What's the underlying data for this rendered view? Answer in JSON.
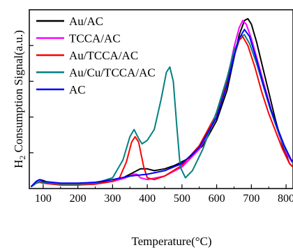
{
  "chart_data": {
    "type": "line",
    "title": "",
    "xlabel": "Temperature(°C)",
    "ylabel_main": "H",
    "ylabel_sub": "2",
    "ylabel_rest": " Consumption Signal(a.u.)",
    "xlim": [
      60,
      820
    ],
    "ylim": [
      0,
      100
    ],
    "x_ticks": [
      100,
      200,
      300,
      400,
      500,
      600,
      700,
      800
    ],
    "x_minor_ticks": [
      150,
      250,
      350,
      450,
      550,
      650,
      750
    ],
    "y_ticks": [
      20,
      40,
      60,
      80
    ],
    "grid": false,
    "legend_position": "top-left",
    "series": [
      {
        "name": "Au/AC",
        "color": "#000000",
        "points": [
          [
            65,
            1
          ],
          [
            80,
            4
          ],
          [
            90,
            5
          ],
          [
            100,
            4.5
          ],
          [
            120,
            3
          ],
          [
            150,
            2.5
          ],
          [
            200,
            2.5
          ],
          [
            250,
            3
          ],
          [
            300,
            4
          ],
          [
            330,
            6
          ],
          [
            360,
            9
          ],
          [
            380,
            11
          ],
          [
            400,
            11
          ],
          [
            420,
            10
          ],
          [
            450,
            11
          ],
          [
            480,
            13
          ],
          [
            520,
            17
          ],
          [
            560,
            24
          ],
          [
            600,
            38
          ],
          [
            630,
            55
          ],
          [
            650,
            73
          ],
          [
            665,
            86
          ],
          [
            680,
            94
          ],
          [
            690,
            95
          ],
          [
            700,
            92
          ],
          [
            715,
            82
          ],
          [
            730,
            70
          ],
          [
            750,
            54
          ],
          [
            770,
            38
          ],
          [
            790,
            24
          ],
          [
            810,
            14
          ],
          [
            820,
            12
          ]
        ]
      },
      {
        "name": "TCCA/AC",
        "color": "#ff00ff",
        "points": [
          [
            65,
            1
          ],
          [
            80,
            3
          ],
          [
            90,
            3.5
          ],
          [
            100,
            3
          ],
          [
            150,
            2
          ],
          [
            200,
            2
          ],
          [
            250,
            2.5
          ],
          [
            300,
            4
          ],
          [
            330,
            5.5
          ],
          [
            350,
            7
          ],
          [
            360,
            8
          ],
          [
            370,
            8
          ],
          [
            380,
            6
          ],
          [
            400,
            5
          ],
          [
            450,
            7
          ],
          [
            500,
            12
          ],
          [
            550,
            22
          ],
          [
            600,
            40
          ],
          [
            630,
            60
          ],
          [
            650,
            79
          ],
          [
            665,
            90
          ],
          [
            675,
            94
          ],
          [
            685,
            92
          ],
          [
            700,
            84
          ],
          [
            720,
            70
          ],
          [
            740,
            56
          ],
          [
            760,
            42
          ],
          [
            780,
            30
          ],
          [
            800,
            20
          ],
          [
            820,
            14
          ]
        ]
      },
      {
        "name": "Au/TCCA/AC",
        "color": "#ff0000",
        "points": [
          [
            65,
            1
          ],
          [
            80,
            3
          ],
          [
            90,
            3.5
          ],
          [
            100,
            3
          ],
          [
            150,
            2
          ],
          [
            200,
            2
          ],
          [
            250,
            2.5
          ],
          [
            300,
            4
          ],
          [
            320,
            6
          ],
          [
            340,
            15
          ],
          [
            355,
            26
          ],
          [
            365,
            29
          ],
          [
            375,
            26
          ],
          [
            390,
            12
          ],
          [
            400,
            6
          ],
          [
            420,
            5
          ],
          [
            450,
            7
          ],
          [
            500,
            13
          ],
          [
            550,
            24
          ],
          [
            600,
            42
          ],
          [
            630,
            60
          ],
          [
            650,
            74
          ],
          [
            665,
            83
          ],
          [
            675,
            85
          ],
          [
            690,
            80
          ],
          [
            710,
            68
          ],
          [
            730,
            54
          ],
          [
            750,
            42
          ],
          [
            770,
            32
          ],
          [
            790,
            22
          ],
          [
            810,
            14
          ],
          [
            820,
            12
          ]
        ]
      },
      {
        "name": "Au/Cu/TCCA/AC",
        "color": "#008080",
        "points": [
          [
            65,
            1
          ],
          [
            80,
            3
          ],
          [
            90,
            4
          ],
          [
            100,
            3.5
          ],
          [
            150,
            2.5
          ],
          [
            200,
            2.5
          ],
          [
            250,
            3
          ],
          [
            300,
            6
          ],
          [
            330,
            16
          ],
          [
            350,
            29
          ],
          [
            362,
            33
          ],
          [
            375,
            28
          ],
          [
            385,
            25
          ],
          [
            400,
            27
          ],
          [
            420,
            33
          ],
          [
            440,
            50
          ],
          [
            455,
            65
          ],
          [
            465,
            68
          ],
          [
            475,
            60
          ],
          [
            485,
            35
          ],
          [
            495,
            12
          ],
          [
            510,
            6
          ],
          [
            530,
            10
          ],
          [
            560,
            22
          ],
          [
            600,
            43
          ],
          [
            630,
            62
          ],
          [
            650,
            77
          ],
          [
            668,
            85
          ],
          [
            680,
            86
          ],
          [
            695,
            81
          ],
          [
            715,
            70
          ],
          [
            735,
            57
          ],
          [
            755,
            44
          ],
          [
            775,
            33
          ],
          [
            795,
            23
          ],
          [
            815,
            16
          ],
          [
            820,
            14
          ]
        ]
      },
      {
        "name": "AC",
        "color": "#0000ff",
        "points": [
          [
            65,
            1
          ],
          [
            80,
            4
          ],
          [
            90,
            5
          ],
          [
            100,
            4
          ],
          [
            150,
            3
          ],
          [
            200,
            3
          ],
          [
            250,
            3.5
          ],
          [
            300,
            5
          ],
          [
            350,
            7
          ],
          [
            400,
            8
          ],
          [
            450,
            10
          ],
          [
            500,
            14
          ],
          [
            550,
            23
          ],
          [
            600,
            40
          ],
          [
            630,
            58
          ],
          [
            650,
            74
          ],
          [
            665,
            84
          ],
          [
            680,
            89
          ],
          [
            695,
            85
          ],
          [
            715,
            72
          ],
          [
            735,
            58
          ],
          [
            755,
            45
          ],
          [
            775,
            34
          ],
          [
            795,
            24
          ],
          [
            815,
            16
          ],
          [
            820,
            15
          ]
        ]
      }
    ]
  }
}
